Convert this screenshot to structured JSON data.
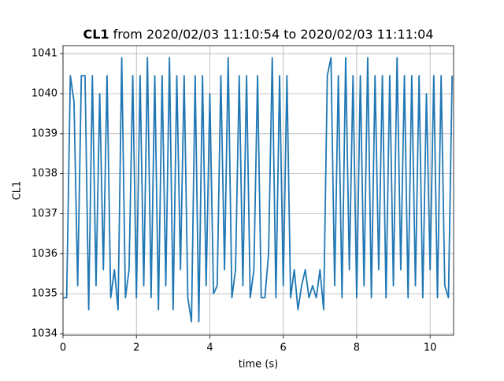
{
  "chart_data": {
    "type": "line",
    "title_bold": "CL1",
    "title": "from 2020/02/03 11:10:54 to 2020/02/03 11:11:04",
    "xlabel": "time (s)",
    "ylabel": "CL1",
    "xlim": [
      0,
      10.64
    ],
    "ylim": [
      1033.96,
      1041.2
    ],
    "xticks": [
      0,
      2,
      4,
      6,
      8,
      10
    ],
    "yticks": [
      1034,
      1035,
      1036,
      1037,
      1038,
      1039,
      1040,
      1041
    ],
    "grid": true,
    "x": [
      0,
      0.1,
      0.2,
      0.3,
      0.4,
      0.5,
      0.6,
      0.7,
      0.8,
      0.9,
      1,
      1.1,
      1.2,
      1.3,
      1.4,
      1.5,
      1.6,
      1.7,
      1.8,
      1.9,
      2,
      2.1,
      2.2,
      2.3,
      2.4,
      2.5,
      2.6,
      2.7,
      2.8,
      2.9,
      3,
      3.1,
      3.2,
      3.3,
      3.4,
      3.5,
      3.6,
      3.7,
      3.8,
      3.9,
      4,
      4.1,
      4.2,
      4.3,
      4.4,
      4.5,
      4.6,
      4.7,
      4.8,
      4.9,
      5,
      5.1,
      5.2,
      5.3,
      5.4,
      5.5,
      5.6,
      5.7,
      5.8,
      5.9,
      6,
      6.1,
      6.2,
      6.3,
      6.4,
      6.5,
      6.6,
      6.7,
      6.8,
      6.9,
      7,
      7.1,
      7.2,
      7.3,
      7.4,
      7.5,
      7.6,
      7.7,
      7.8,
      7.9,
      8,
      8.1,
      8.2,
      8.3,
      8.4,
      8.5,
      8.6,
      8.7,
      8.8,
      8.9,
      9,
      9.1,
      9.2,
      9.3,
      9.4,
      9.5,
      9.6,
      9.7,
      9.8,
      9.9,
      10,
      10.1,
      10.2,
      10.3,
      10.4,
      10.5,
      10.6
    ],
    "series": [
      {
        "name": "CL1",
        "color": "#1f77b4",
        "values": [
          1034.9,
          1034.9,
          1040.45,
          1039.8,
          1035.2,
          1040.45,
          1040.45,
          1034.6,
          1040.45,
          1035.2,
          1040.0,
          1035.6,
          1040.45,
          1034.9,
          1035.6,
          1034.6,
          1040.9,
          1034.9,
          1035.6,
          1040.45,
          1034.9,
          1040.45,
          1035.2,
          1040.9,
          1034.9,
          1040.45,
          1034.6,
          1040.45,
          1035.2,
          1040.9,
          1034.6,
          1040.45,
          1035.6,
          1040.45,
          1034.9,
          1034.3,
          1040.45,
          1034.3,
          1040.45,
          1035.2,
          1040.0,
          1035.0,
          1035.2,
          1040.45,
          1035.6,
          1040.9,
          1034.9,
          1035.6,
          1040.45,
          1035.2,
          1040.45,
          1034.9,
          1035.6,
          1040.45,
          1034.9,
          1034.9,
          1036.0,
          1040.9,
          1034.9,
          1040.45,
          1035.2,
          1040.45,
          1034.9,
          1035.6,
          1034.6,
          1035.2,
          1035.6,
          1034.9,
          1035.2,
          1034.9,
          1035.6,
          1034.6,
          1040.45,
          1040.9,
          1035.2,
          1040.45,
          1034.9,
          1040.9,
          1035.6,
          1040.45,
          1034.9,
          1040.45,
          1035.2,
          1040.9,
          1034.9,
          1040.45,
          1035.6,
          1040.45,
          1034.9,
          1040.45,
          1035.2,
          1040.9,
          1035.6,
          1040.45,
          1034.9,
          1040.45,
          1035.2,
          1040.45,
          1034.9,
          1040.0,
          1035.6,
          1040.45,
          1034.9,
          1040.45,
          1035.2,
          1034.9,
          1040.45
        ]
      }
    ]
  }
}
